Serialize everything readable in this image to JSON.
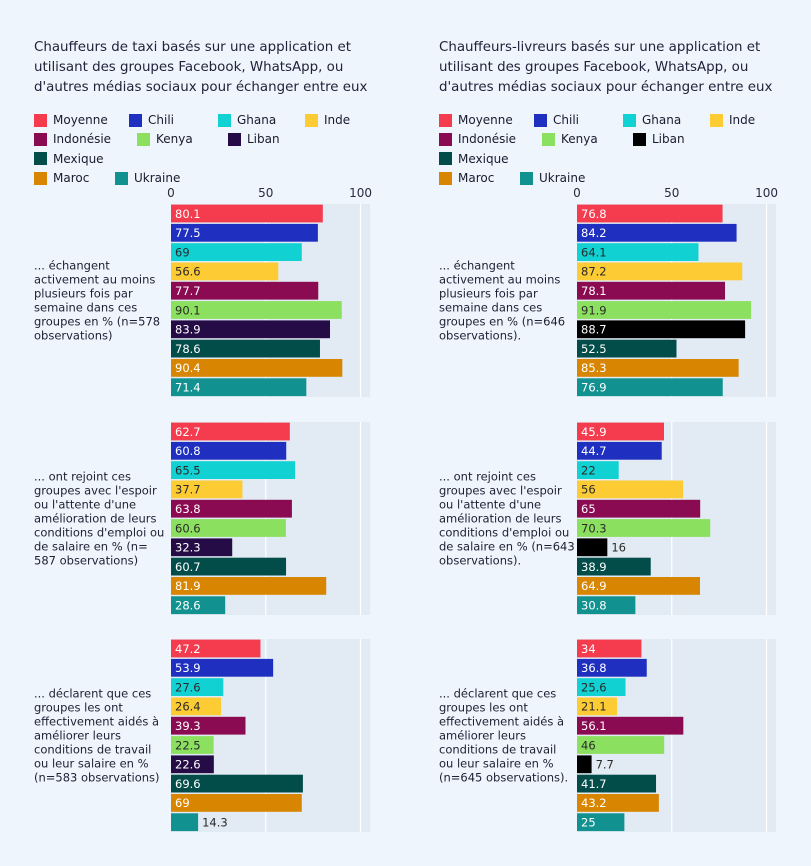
{
  "colors": {
    "Moyenne": "#f53b4e",
    "Chili": "#1f2fbf",
    "Ghana": "#12d1d3",
    "Inde": "#fdcb33",
    "Indonésie": "#8b0b52",
    "Kenya": "#8ce060",
    "Liban": "#250c47",
    "Mexique": "#024c4a",
    "Maroc": "#d88602",
    "Ukraine": "#11918f"
  },
  "chart_data": [
    {
      "type": "bar",
      "orientation": "horizontal",
      "title": "Chauffeurs de taxi basés sur une application et utilisant des groupes Facebook, WhatsApp, ou d'autres médias sociaux pour échanger entre eux",
      "xlim": [
        0,
        105
      ],
      "xticks": [
        "0",
        "50",
        "100"
      ],
      "legend_placement": "top",
      "legend": [
        "Moyenne",
        "Chili",
        "Ghana",
        "Inde",
        "Indonésie",
        "Kenya",
        "Liban",
        "Mexique",
        "Maroc",
        "Ukraine"
      ],
      "series_colors": [
        "#f53b4e",
        "#1f2fbf",
        "#12d1d3",
        "#fdcb33",
        "#8b0b52",
        "#8ce060",
        "#250c47",
        "#024c4a",
        "#d88602",
        "#11918f"
      ],
      "groups": [
        {
          "label": "... échangent activement au moins plusieurs fois par semaine dans ces groupes en % (n=578 observations)",
          "values": [
            80.1,
            77.5,
            69,
            56.6,
            77.7,
            90.1,
            83.9,
            78.6,
            90.4,
            71.4
          ]
        },
        {
          "label": "... ont rejoint ces groupes avec l'espoir ou l'attente d'une amélioration de leurs conditions d'emploi ou de salaire en % (n= 587 observations)",
          "values": [
            62.7,
            60.8,
            65.5,
            37.7,
            63.8,
            60.6,
            32.3,
            60.7,
            81.9,
            28.6
          ]
        },
        {
          "label": "... déclarent que ces groupes les ont effectivement aidés à améliorer leurs conditions de travail ou leur salaire en % (n=583 observations)",
          "values": [
            47.2,
            53.9,
            27.6,
            26.4,
            39.3,
            22.5,
            22.6,
            69.6,
            69,
            14.3
          ]
        }
      ]
    },
    {
      "type": "bar",
      "orientation": "horizontal",
      "title": "Chauffeurs-livreurs basés sur une application et utilisant des groupes Facebook, WhatsApp, ou d'autres médias sociaux pour échanger entre eux",
      "xlim": [
        0,
        105
      ],
      "xticks": [
        "0",
        "50",
        "100"
      ],
      "legend_placement": "top",
      "legend": [
        "Moyenne",
        "Chili",
        "Ghana",
        "Inde",
        "Indonésie",
        "Kenya",
        "Liban",
        "Mexique",
        "Maroc",
        "Ukraine"
      ],
      "series_colors": [
        "#f53b4e",
        "#1f2fbf",
        "#12d1d3",
        "#fdcb33",
        "#8b0b52",
        "#8ce060",
        "#000000",
        "#024c4a",
        "#d88602",
        "#11918f"
      ],
      "groups": [
        {
          "label": "... échangent activement au moins plusieurs fois par semaine dans ces groupes en % (n=646 observations).",
          "values": [
            76.8,
            84.2,
            64.1,
            87.2,
            78.1,
            91.9,
            88.7,
            52.5,
            85.3,
            76.9
          ]
        },
        {
          "label": "... ont rejoint ces groupes avec l'espoir ou l'attente d'une amélioration de leurs conditions d'emploi ou de salaire en % (n=643 observations).",
          "values": [
            45.9,
            44.7,
            22,
            56,
            65,
            70.3,
            16,
            38.9,
            64.9,
            30.8
          ]
        },
        {
          "label": "... déclarent que ces groupes les ont effectivement aidés à améliorer leurs conditions de travail ou leur salaire en % (n=645 observations).",
          "values": [
            34,
            36.8,
            25.6,
            21.1,
            56.1,
            46,
            7.7,
            41.7,
            43.2,
            25
          ]
        }
      ]
    }
  ]
}
